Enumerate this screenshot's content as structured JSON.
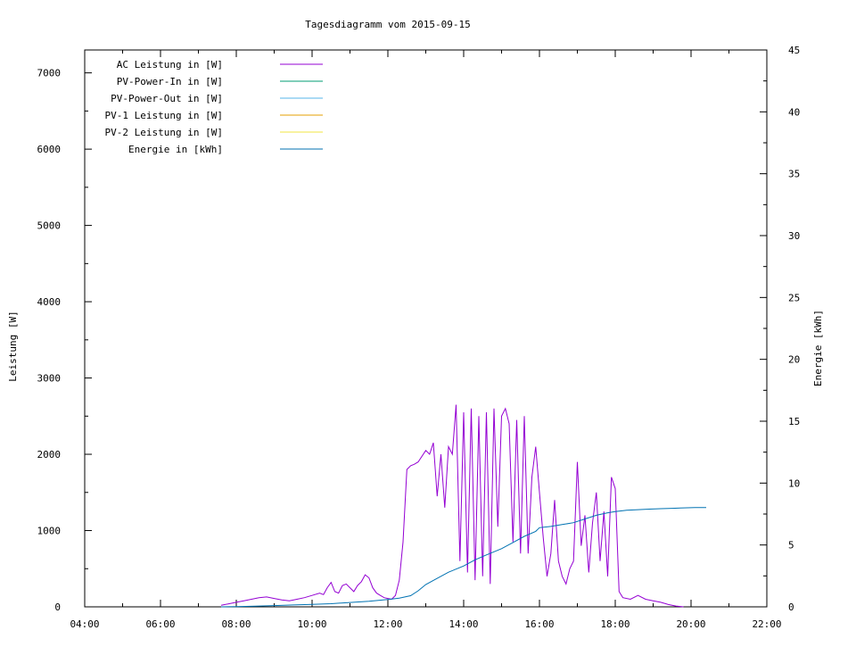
{
  "colors": {
    "ac_leistung": "#9400d3",
    "pv_power_in": "#009e73",
    "pv_power_out": "#56b4e9",
    "pv1_leistung": "#e69f00",
    "pv2_leistung": "#f0e442",
    "energie": "#0072b2"
  },
  "chart_data": {
    "type": "line",
    "title": "Tagesdiagramm vom 2015-09-15",
    "xlabel": "",
    "ylabel": "Leistung [W]",
    "y2label": "Energie [kWh]",
    "xlim": [
      4.0,
      22.0
    ],
    "ylim": [
      0,
      7300
    ],
    "y2lim": [
      0,
      45
    ],
    "x_ticks": [
      "04:00",
      "06:00",
      "08:00",
      "10:00",
      "12:00",
      "14:00",
      "16:00",
      "18:00",
      "20:00",
      "22:00"
    ],
    "y_ticks": [
      "0",
      "1000",
      "2000",
      "3000",
      "4000",
      "5000",
      "6000",
      "7000"
    ],
    "y2_ticks": [
      "0",
      "5",
      "10",
      "15",
      "20",
      "25",
      "30",
      "35",
      "40",
      "45"
    ],
    "legend_position": "top-left",
    "grid": false,
    "series": [
      {
        "name": "AC Leistung in [W]",
        "axis": "left",
        "x": [
          7.6,
          7.8,
          8.0,
          8.2,
          8.4,
          8.6,
          8.8,
          9.0,
          9.2,
          9.4,
          9.6,
          9.8,
          10.0,
          10.2,
          10.3,
          10.4,
          10.5,
          10.6,
          10.7,
          10.8,
          10.9,
          11.0,
          11.1,
          11.2,
          11.3,
          11.4,
          11.5,
          11.6,
          11.7,
          11.8,
          11.9,
          12.0,
          12.1,
          12.2,
          12.3,
          12.4,
          12.5,
          12.6,
          12.7,
          12.8,
          13.0,
          13.1,
          13.2,
          13.3,
          13.4,
          13.5,
          13.6,
          13.7,
          13.8,
          13.9,
          14.0,
          14.1,
          14.2,
          14.3,
          14.4,
          14.5,
          14.6,
          14.7,
          14.8,
          14.9,
          15.0,
          15.1,
          15.2,
          15.3,
          15.4,
          15.5,
          15.6,
          15.7,
          15.8,
          15.9,
          16.0,
          16.1,
          16.2,
          16.3,
          16.4,
          16.5,
          16.6,
          16.7,
          16.8,
          16.9,
          17.0,
          17.1,
          17.2,
          17.3,
          17.4,
          17.5,
          17.6,
          17.7,
          17.8,
          17.9,
          18.0,
          18.1,
          18.2,
          18.4,
          18.6,
          18.8,
          19.0,
          19.2,
          19.4,
          19.6,
          19.8
        ],
        "y": [
          20,
          40,
          60,
          80,
          100,
          120,
          130,
          110,
          90,
          80,
          100,
          120,
          150,
          180,
          160,
          250,
          320,
          200,
          180,
          280,
          300,
          250,
          200,
          280,
          330,
          420,
          380,
          250,
          180,
          150,
          120,
          110,
          100,
          150,
          350,
          850,
          1800,
          1850,
          1870,
          1900,
          2050,
          2000,
          2150,
          1450,
          2000,
          1300,
          2100,
          2000,
          2650,
          600,
          2550,
          450,
          2600,
          350,
          2500,
          400,
          2550,
          300,
          2600,
          1050,
          2500,
          2600,
          2400,
          850,
          2450,
          700,
          2500,
          700,
          1700,
          2100,
          1500,
          900,
          400,
          700,
          1400,
          600,
          400,
          300,
          500,
          600,
          1900,
          800,
          1200,
          450,
          1100,
          1500,
          600,
          1250,
          400,
          1700,
          1550,
          200,
          120,
          100,
          150,
          100,
          80,
          60,
          30,
          10,
          0
        ]
      },
      {
        "name": "PV-Power-In in [W]",
        "axis": "right",
        "x": [],
        "y": []
      },
      {
        "name": "PV-Power-Out in [W]",
        "axis": "right",
        "x": [],
        "y": []
      },
      {
        "name": "PV-1 Leistung in [W]",
        "axis": "left",
        "x": [],
        "y": []
      },
      {
        "name": "PV-2 Leistung in [W]",
        "axis": "left",
        "x": [],
        "y": []
      },
      {
        "name": "Energie in [kWh]",
        "axis": "right",
        "x": [
          7.6,
          8.0,
          8.5,
          9.0,
          9.5,
          10.0,
          10.5,
          11.0,
          11.5,
          12.0,
          12.3,
          12.6,
          12.8,
          13.0,
          13.3,
          13.6,
          14.0,
          14.3,
          14.6,
          15.0,
          15.3,
          15.6,
          15.9,
          16.0,
          16.3,
          16.6,
          16.9,
          17.2,
          17.5,
          17.8,
          18.0,
          18.3,
          18.6,
          18.9,
          19.2,
          19.5,
          19.8,
          20.1,
          20.4
        ],
        "y": [
          0.0,
          0.02,
          0.05,
          0.1,
          0.15,
          0.2,
          0.25,
          0.35,
          0.45,
          0.6,
          0.7,
          0.9,
          1.3,
          1.8,
          2.3,
          2.8,
          3.3,
          3.8,
          4.2,
          4.7,
          5.2,
          5.7,
          6.1,
          6.4,
          6.5,
          6.65,
          6.8,
          7.1,
          7.4,
          7.6,
          7.7,
          7.8,
          7.85,
          7.9,
          7.93,
          7.96,
          8.0,
          8.02,
          8.03
        ]
      }
    ]
  }
}
